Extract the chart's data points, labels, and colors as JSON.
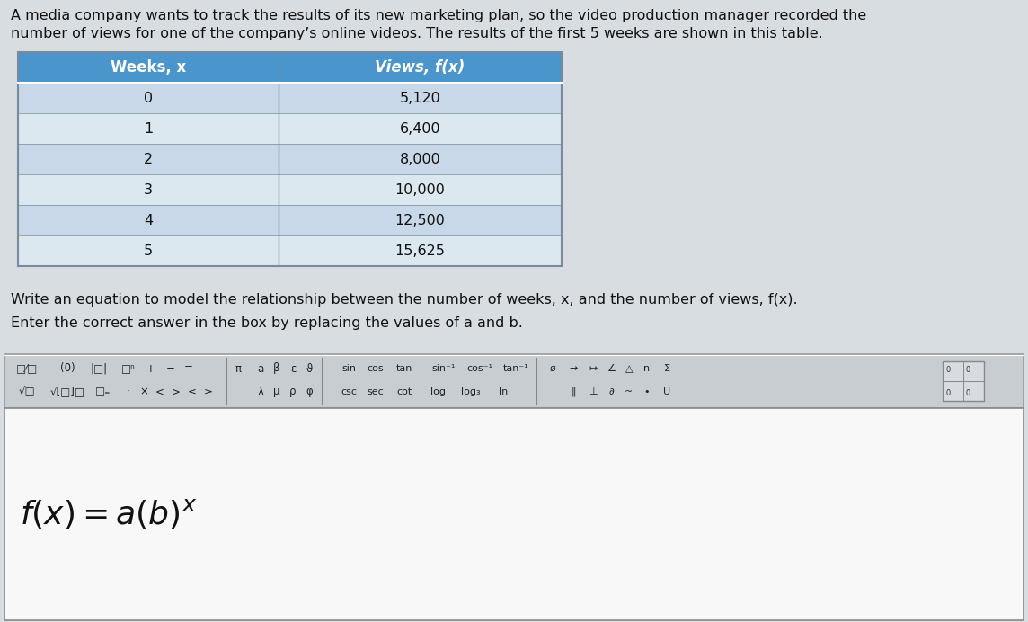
{
  "title_line1": "A media company wants to track the results of its new marketing plan, so the video production manager recorded the",
  "title_line2": "number of views for one of the company’s online videos. The results of the first 5 weeks are shown in this table.",
  "col_headers": [
    "Weeks, x",
    "Views, f(x)"
  ],
  "table_data": [
    [
      "0",
      "5,120"
    ],
    [
      "1",
      "6,400"
    ],
    [
      "2",
      "8,000"
    ],
    [
      "3",
      "10,000"
    ],
    [
      "4",
      "12,500"
    ],
    [
      "5",
      "15,625"
    ]
  ],
  "instruction_text1": "Write an equation to model the relationship between the number of weeks, x, and the number of views, f(x).",
  "instruction_text2": "Enter the correct answer in the box by replacing the values of a and b.",
  "header_bg": "#4a96cc",
  "header_text_color": "#ffffff",
  "row_bg_alt1": "#c8d8e8",
  "row_bg_alt2": "#dce8f0",
  "toolbar_bg": "#c8cdd2",
  "toolbar_border": "#999999",
  "eq_box_bg": "#f0f0f0",
  "eq_box_border": "#888888",
  "page_bg": "#d8dde2",
  "text_color": "#111111",
  "table_border": "#7a8a9a",
  "toolbar_left_items_r1": [
    [
      "□⁄□",
      30
    ],
    [
      "(0)",
      75
    ],
    [
      "|□|",
      110
    ],
    [
      "□ⁿ",
      143
    ],
    [
      "+",
      168
    ],
    [
      "−",
      190
    ],
    [
      "=",
      210
    ]
  ],
  "toolbar_left_items_r2": [
    [
      "√□",
      30
    ],
    [
      "√[□]□",
      75
    ],
    [
      "□₌",
      115
    ],
    [
      "·",
      143
    ],
    [
      "×",
      160
    ],
    [
      "<",
      178
    ],
    [
      ">",
      196
    ],
    [
      "≤",
      214
    ],
    [
      "≥",
      232
    ]
  ],
  "toolbar_mid_r1": [
    [
      "π",
      265
    ],
    [
      "a",
      290
    ],
    [
      "β",
      308
    ],
    [
      "ε",
      326
    ],
    [
      "ϑ",
      344
    ]
  ],
  "toolbar_mid_r2": [
    [
      "λ",
      290
    ],
    [
      "μ",
      308
    ],
    [
      "ρ",
      326
    ],
    [
      "φ",
      344
    ]
  ],
  "toolbar_trig_r1": [
    [
      "sin",
      388
    ],
    [
      "cos",
      418
    ],
    [
      "tan",
      450
    ],
    [
      "sin⁻¹",
      494
    ],
    [
      "cos⁻¹",
      534
    ],
    [
      "tan⁻¹",
      574
    ]
  ],
  "toolbar_trig_r2": [
    [
      "csc",
      388
    ],
    [
      "sec",
      418
    ],
    [
      "cot",
      450
    ],
    [
      "log",
      488
    ],
    [
      "log₃",
      524
    ],
    [
      "ln",
      560
    ]
  ],
  "toolbar_right_r1": [
    [
      "ø",
      615
    ],
    [
      "→",
      638
    ],
    [
      "↦",
      660
    ],
    [
      "∠",
      680
    ],
    [
      "△",
      700
    ],
    [
      "n",
      720
    ],
    [
      "Σ",
      742
    ]
  ],
  "toolbar_right_r2": [
    [
      "‖",
      638
    ],
    [
      "⊥",
      660
    ],
    [
      "∂",
      680
    ],
    [
      "~",
      700
    ],
    [
      "•",
      720
    ],
    [
      "U",
      742
    ]
  ]
}
